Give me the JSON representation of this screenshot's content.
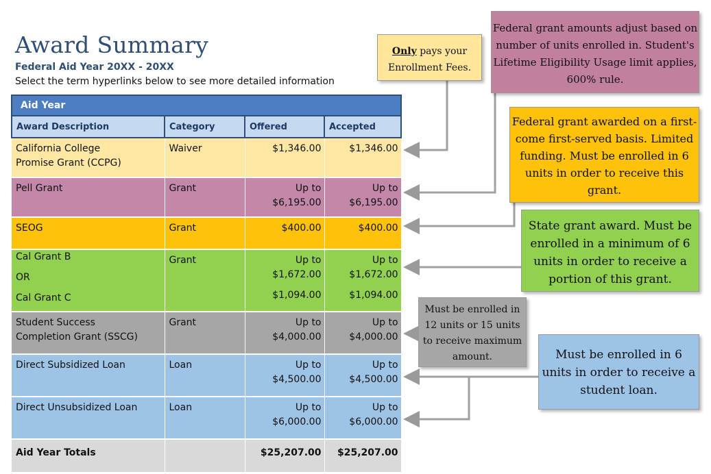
{
  "header": {
    "title": "Award Summary",
    "aid_year_label": "Federal Aid Year 20XX - 20XX",
    "instructions": "Select the term hyperlinks below to see more detailed information"
  },
  "table": {
    "section_title": "Aid Year",
    "columns": [
      "Award Description",
      "Category",
      "Offered",
      "Accepted"
    ],
    "rows": [
      {
        "description": [
          "California College",
          "Promise Grant (CCPG)"
        ],
        "category": "Waiver",
        "offered": [
          "$1,346.00"
        ],
        "accepted": [
          "$1,346.00"
        ],
        "color": "#fde7a3"
      },
      {
        "description": [
          "Pell Grant"
        ],
        "category": "Grant",
        "offered": [
          "Up to",
          "$6,195.00"
        ],
        "accepted": [
          "Up to",
          "$6,195.00"
        ],
        "color": "#c387a7"
      },
      {
        "description": [
          "SEOG"
        ],
        "category": "Grant",
        "offered": [
          "$400.00"
        ],
        "accepted": [
          "$400.00"
        ],
        "color": "#ffc20a"
      },
      {
        "description": [
          "Cal Grant B",
          "OR",
          "Cal Grant C"
        ],
        "category": "Grant",
        "offered": [
          "Up to",
          "$1,672.00",
          "$1,094.00"
        ],
        "accepted": [
          "Up to",
          "$1,672.00",
          "$1,094.00"
        ],
        "color": "#92d050"
      },
      {
        "description": [
          "Student Success",
          "Completion Grant (SSCG)"
        ],
        "category": "Grant",
        "offered": [
          "Up to",
          "$4,000.00"
        ],
        "accepted": [
          "Up to",
          "$4,000.00"
        ],
        "color": "#a6a6a6"
      },
      {
        "description": [
          "Direct Subsidized Loan"
        ],
        "category": "Loan",
        "offered": [
          "Up to",
          "$4,500.00"
        ],
        "accepted": [
          "Up to",
          "$4,500.00"
        ],
        "color": "#9dc3e6"
      },
      {
        "description": [
          "Direct Unsubsidized Loan"
        ],
        "category": "Loan",
        "offered": [
          "Up to",
          "$6,000.00"
        ],
        "accepted": [
          "Up to",
          "$6,000.00"
        ],
        "color": "#9dc3e6"
      }
    ],
    "totals": {
      "label": "Aid Year Totals",
      "offered": "$25,207.00",
      "accepted": "$25,207.00"
    }
  },
  "notes": {
    "ccpg": {
      "emphasis": "Only",
      "text": "pays your Enrollment Fees."
    },
    "pell": {
      "text": "Federal grant amounts adjust based on number of units enrolled in. Student's Lifetime Eligibility Usage limit applies, 600% rule."
    },
    "seog": {
      "text": "Federal grant awarded on a first-come first-served basis. Limited funding. Must be enrolled in 6 units in order to receive this grant."
    },
    "cal_grant": {
      "text": "State grant award. Must be enrolled in a minimum of 6 units in order to receive a portion of this grant."
    },
    "sscg": {
      "text": "Must be enrolled in 12 units or 15 units to receive maximum amount."
    },
    "loans": {
      "text": "Must be enrolled in 6 units in order to receive a student loan."
    }
  }
}
